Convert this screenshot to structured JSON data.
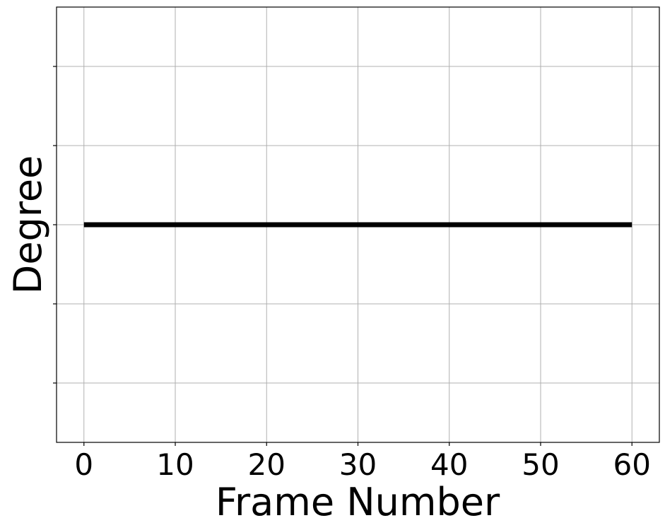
{
  "chart_data": {
    "type": "line",
    "title": "",
    "xlabel": "Frame Number",
    "ylabel": "Degree",
    "xlim": [
      -3,
      63
    ],
    "ylim": [
      -2.75,
      2.75
    ],
    "xticks": [
      0,
      10,
      20,
      30,
      40,
      50,
      60
    ],
    "xtick_labels": [
      "0",
      "10",
      "20",
      "30",
      "40",
      "50",
      "60"
    ],
    "yticks": [
      -2,
      -1,
      0,
      1,
      2
    ],
    "ytick_labels": [
      "",
      "",
      "",
      "",
      ""
    ],
    "grid": true,
    "series": [
      {
        "name": "degree",
        "color": "#000000",
        "x": [
          0,
          60
        ],
        "y": [
          0,
          0
        ]
      }
    ]
  }
}
